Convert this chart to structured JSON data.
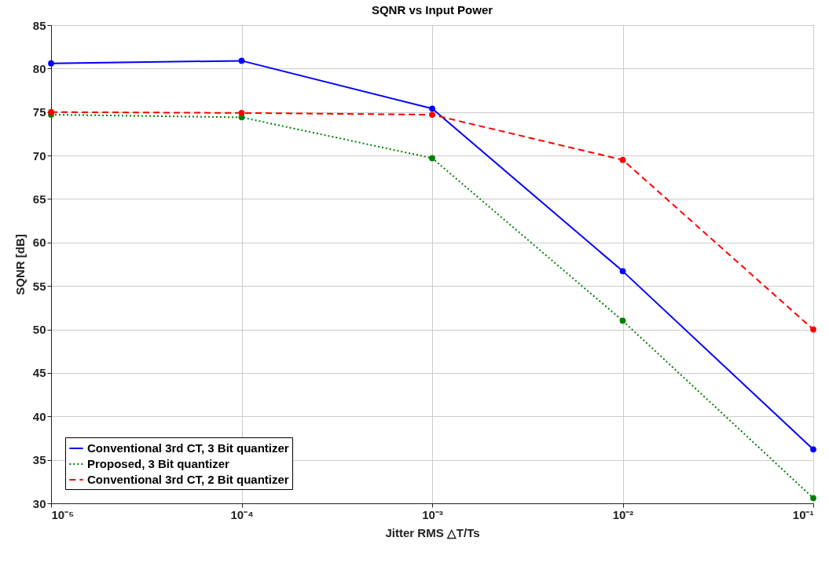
{
  "chart_data": {
    "type": "line",
    "title": "SQNR vs Input Power",
    "xlabel": "Jitter RMS △T/Ts",
    "ylabel": "SQNR [dB]",
    "x": [
      1e-05,
      0.0001,
      0.001,
      0.01,
      0.1
    ],
    "series": [
      {
        "name": "Conventional 3rd CT, 3 Bit quantizer",
        "color": "#0000ff",
        "line_style": "solid",
        "values": [
          80.6,
          80.9,
          75.4,
          56.7,
          36.2
        ]
      },
      {
        "name": "Proposed, 3 Bit quantizer",
        "color": "#008000",
        "line_style": "dotted",
        "values": [
          74.7,
          74.4,
          69.7,
          51.0,
          30.6
        ]
      },
      {
        "name": "Conventional 3rd CT, 2 Bit quantizer",
        "color": "#ff0000",
        "line_style": "dashed",
        "values": [
          75.0,
          74.9,
          74.7,
          69.5,
          50.0
        ]
      }
    ],
    "log": "x",
    "xlim": [
      1e-05,
      0.1
    ],
    "xticks": [
      {
        "value": 1e-05,
        "label": "10⁻⁵"
      },
      {
        "value": 0.0001,
        "label": "10⁻⁴"
      },
      {
        "value": 0.001,
        "label": "10⁻³"
      },
      {
        "value": 0.01,
        "label": "10⁻²"
      },
      {
        "value": 0.1,
        "label": "10⁻¹"
      }
    ],
    "ylim": [
      30,
      85
    ],
    "yticks": [
      30,
      35,
      40,
      45,
      50,
      55,
      60,
      65,
      70,
      75,
      80,
      85
    ],
    "grid": true,
    "legend": "bottom left",
    "marker": "circle"
  }
}
